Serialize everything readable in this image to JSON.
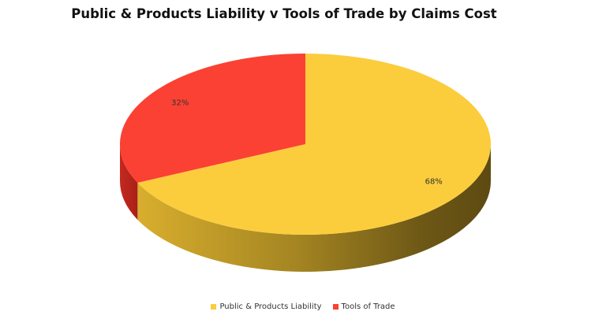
{
  "chart_data": {
    "type": "pie",
    "title": "Public & Products Liability v Tools of Trade by Claims Cost",
    "slices": [
      {
        "label": "Public & Products Liability",
        "value": 68,
        "display": "68%",
        "color": "#FBCD3D"
      },
      {
        "label": "Tools of Trade",
        "value": 32,
        "display": "32%",
        "color": "#FB4133"
      }
    ],
    "legend_position": "bottom",
    "style": "3d"
  }
}
